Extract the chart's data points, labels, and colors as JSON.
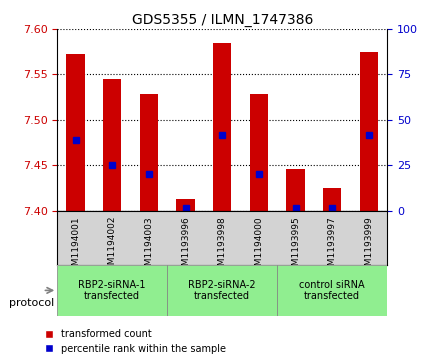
{
  "title": "GDS5355 / ILMN_1747386",
  "samples": [
    "GSM1194001",
    "GSM1194002",
    "GSM1194003",
    "GSM1193996",
    "GSM1193998",
    "GSM1194000",
    "GSM1193995",
    "GSM1193997",
    "GSM1193999"
  ],
  "bar_tops": [
    7.572,
    7.545,
    7.528,
    7.413,
    7.585,
    7.528,
    7.446,
    7.425,
    7.575
  ],
  "bar_bottoms": [
    7.4,
    7.4,
    7.4,
    7.4,
    7.4,
    7.4,
    7.4,
    7.4,
    7.4
  ],
  "percentile_values": [
    7.478,
    7.45,
    7.44,
    7.403,
    7.483,
    7.44,
    7.403,
    7.403,
    7.483
  ],
  "percentile_ranks": [
    37,
    25,
    20,
    2,
    40,
    20,
    2,
    2,
    40
  ],
  "ylim": [
    7.4,
    7.6
  ],
  "yticks_left": [
    7.4,
    7.45,
    7.5,
    7.55,
    7.6
  ],
  "yticks_right": [
    0,
    25,
    50,
    75,
    100
  ],
  "bar_color": "#cc0000",
  "dot_color": "#0000cc",
  "groups": [
    {
      "label": "RBP2-siRNA-1\ntransfected",
      "start": 0,
      "end": 3,
      "color": "#90ee90"
    },
    {
      "label": "RBP2-siRNA-2\ntransfected",
      "start": 3,
      "end": 6,
      "color": "#90ee90"
    },
    {
      "label": "control siRNA\ntransfected",
      "start": 6,
      "end": 9,
      "color": "#90ee90"
    }
  ],
  "protocol_label": "protocol",
  "legend_items": [
    {
      "label": "transformed count",
      "color": "#cc0000"
    },
    {
      "label": "percentile rank within the sample",
      "color": "#0000cc"
    }
  ],
  "grid_style": "dotted",
  "background_color": "#ffffff",
  "plot_bg_color": "#ffffff",
  "tick_area_bg": "#d3d3d3"
}
